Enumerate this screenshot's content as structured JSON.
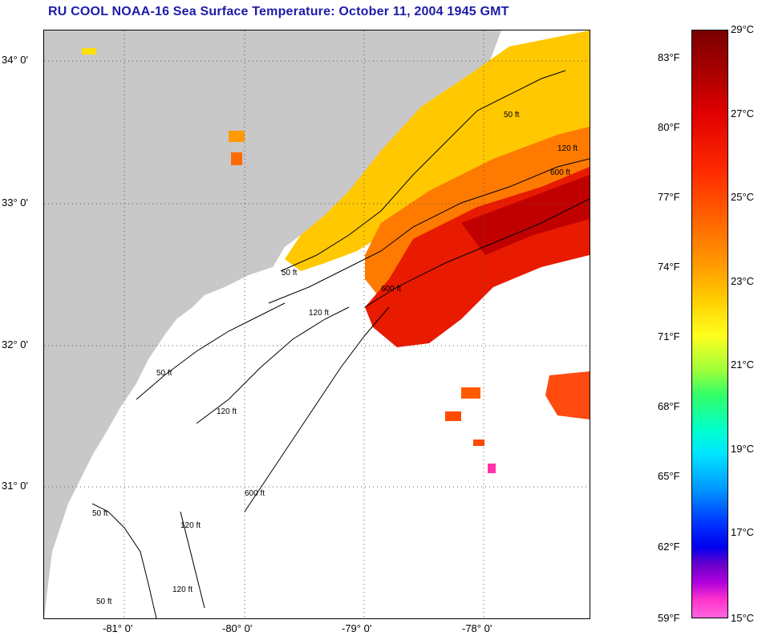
{
  "title": "RU COOL  NOAA-16  Sea Surface Temperature:  October 11, 2004 1945 GMT",
  "map": {
    "lat_labels": [
      "34° 0'",
      "33° 0'",
      "32° 0'",
      "31° 0'"
    ],
    "lon_labels": [
      "-81° 0'",
      "-80° 0'",
      "-79° 0'",
      "-78° 0'"
    ],
    "isobath_labels": [
      "50 ft",
      "120 ft",
      "600 ft",
      "50 ft",
      "120 ft",
      "600 ft",
      "50 ft",
      "120 ft",
      "600 ft",
      "50 ft",
      "120 ft",
      "50 ft",
      "120 ft"
    ],
    "colors": {
      "land": "#c8c8c8",
      "no_data": "#ffffff",
      "isobath": "#000000",
      "grid": "#555555"
    }
  },
  "colorbar": {
    "fahrenheit_labels": [
      "83°F",
      "80°F",
      "77°F",
      "74°F",
      "71°F",
      "68°F",
      "65°F",
      "62°F",
      "59°F"
    ],
    "celsius_labels": [
      "29°C",
      "27°C",
      "25°C",
      "23°C",
      "21°C",
      "19°C",
      "17°C",
      "15°C"
    ]
  }
}
